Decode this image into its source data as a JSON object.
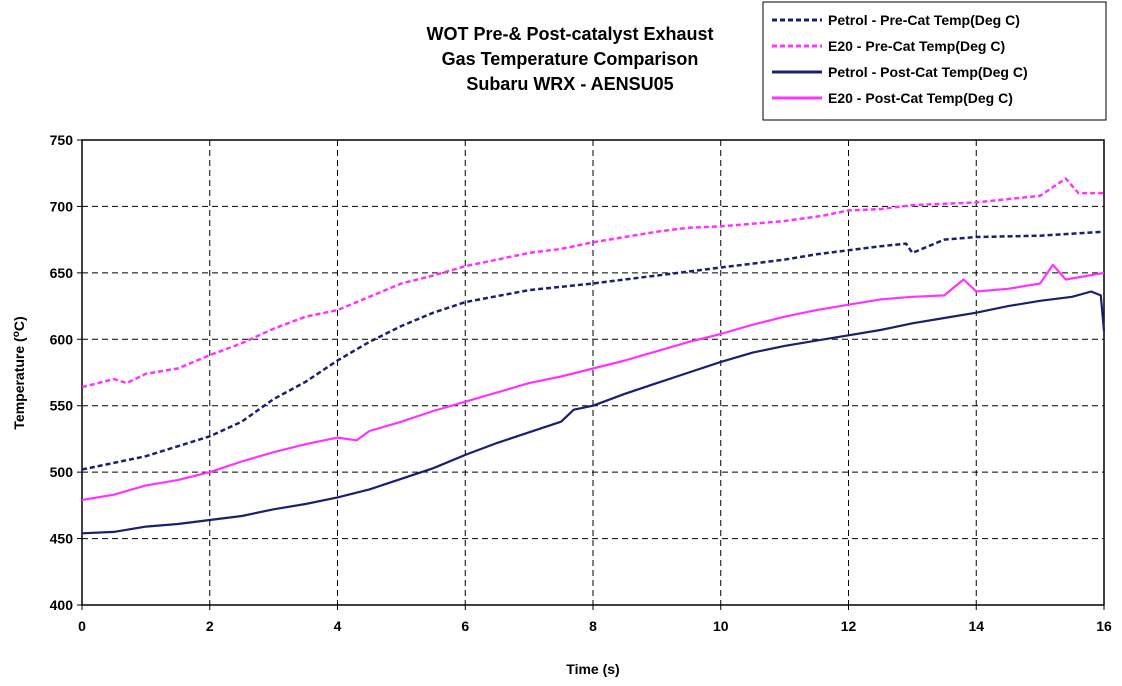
{
  "chart_data": {
    "type": "line",
    "title_lines": [
      "WOT Pre-& Post-catalyst Exhaust",
      "Gas Temperature Comparison",
      "Subaru WRX - AENSU05"
    ],
    "xlabel": "Time (s)",
    "ylabel_prefix": "Temperature (",
    "ylabel_sup": "o",
    "ylabel_suffix": "C)",
    "xlim": [
      0,
      16
    ],
    "ylim": [
      400,
      750
    ],
    "xticks": [
      "0",
      "2",
      "4",
      "6",
      "8",
      "10",
      "12",
      "14",
      "16"
    ],
    "yticks": [
      "400",
      "450",
      "500",
      "550",
      "600",
      "650",
      "700",
      "750"
    ],
    "grid": true,
    "legend_position": "top-right",
    "series": [
      {
        "name": "Petrol - Pre-Cat Temp(Deg C)",
        "color": "#1a1f6e",
        "style": "dashed",
        "x": [
          0,
          1,
          2,
          2.5,
          3,
          3.5,
          4,
          4.5,
          5,
          5.5,
          6,
          7,
          8,
          9,
          10,
          10.5,
          11,
          11.5,
          12,
          12.5,
          12.9,
          13,
          13.5,
          14,
          15,
          16
        ],
        "y": [
          502,
          512,
          527,
          538,
          555,
          568,
          584,
          598,
          610,
          620,
          628,
          637,
          642,
          648,
          654,
          657,
          660,
          664,
          667,
          670,
          672,
          665,
          675,
          677,
          678,
          681
        ]
      },
      {
        "name": "E20 - Pre-Cat Temp(Deg C)",
        "color": "#ff33ff",
        "style": "dashed",
        "x": [
          0,
          0.5,
          0.7,
          1,
          1.5,
          2,
          2.5,
          3,
          3.5,
          4,
          4.5,
          5,
          5.5,
          6,
          6.5,
          7,
          7.5,
          8,
          8.5,
          9,
          9.5,
          10,
          11,
          11.6,
          12,
          12.5,
          13,
          14,
          15,
          15.4,
          15.6,
          16
        ],
        "y": [
          564,
          570,
          567,
          574,
          578,
          588,
          597,
          608,
          617,
          622,
          632,
          642,
          648,
          655,
          660,
          665,
          668,
          673,
          677,
          681,
          684,
          685,
          689,
          693,
          697,
          698,
          701,
          703,
          708,
          721,
          710,
          710
        ]
      },
      {
        "name": "Petrol - Post-Cat Temp(Deg C)",
        "color": "#1a1f6e",
        "style": "solid",
        "x": [
          0,
          0.5,
          1,
          1.5,
          2,
          2.5,
          3,
          3.5,
          4,
          4.5,
          5,
          5.5,
          6,
          6.5,
          7,
          7.5,
          7.7,
          8,
          8.5,
          9,
          9.5,
          10,
          10.5,
          11,
          11.5,
          12,
          12.5,
          13,
          13.5,
          14,
          14.5,
          15,
          15.5,
          15.8,
          15.95,
          16
        ],
        "y": [
          454,
          455,
          459,
          461,
          464,
          467,
          472,
          476,
          481,
          487,
          495,
          503,
          513,
          522,
          530,
          538,
          547,
          550,
          559,
          567,
          575,
          583,
          590,
          595,
          599,
          603,
          607,
          612,
          616,
          620,
          625,
          629,
          632,
          636,
          633,
          606
        ]
      },
      {
        "name": "E20 - Post-Cat Temp(Deg C)",
        "color": "#ff33ff",
        "style": "solid",
        "x": [
          0,
          0.5,
          1,
          1.5,
          2,
          2.5,
          3,
          3.5,
          4,
          4.3,
          4.5,
          5,
          5.5,
          6,
          6.5,
          7,
          7.5,
          8,
          8.5,
          9,
          9.5,
          10,
          10.5,
          11,
          11.5,
          12,
          12.5,
          13,
          13.5,
          13.8,
          14,
          14.5,
          15,
          15.2,
          15.4,
          16
        ],
        "y": [
          479,
          483,
          490,
          494,
          500,
          508,
          515,
          521,
          526,
          524,
          531,
          538,
          546,
          553,
          560,
          567,
          572,
          578,
          584,
          591,
          598,
          604,
          611,
          617,
          622,
          626,
          630,
          632,
          633,
          645,
          636,
          638,
          642,
          656,
          645,
          650
        ]
      }
    ]
  }
}
